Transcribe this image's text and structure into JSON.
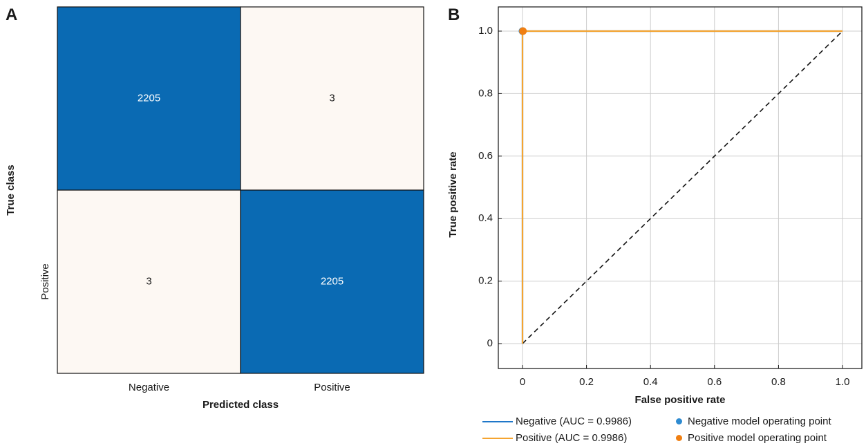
{
  "panels": {
    "a_label": "A",
    "b_label": "B"
  },
  "colors": {
    "cell_high": "#0a6ab3",
    "cell_low": "#fdf8f3",
    "grid": "#cccccc",
    "negative": "#1f77c9",
    "positive": "#f5a430",
    "positive_point": "#f07f12",
    "negative_point": "#2e8bd1",
    "diagonal": "#111111"
  },
  "chart_data": [
    {
      "type": "heatmap",
      "title": "",
      "xlabel": "Predicted class",
      "ylabel": "True class",
      "x_categories": [
        "Negative",
        "Positive"
      ],
      "y_categories": [
        "",
        "Positive"
      ],
      "values": [
        [
          2205,
          3
        ],
        [
          3,
          2205
        ]
      ],
      "cell_labels": [
        [
          "2205",
          "3"
        ],
        [
          "3",
          "2205"
        ]
      ]
    },
    {
      "type": "line",
      "title": "",
      "xlabel": "False positive rate",
      "ylabel": "True positive rate",
      "xlim": [
        -0.08,
        1.06
      ],
      "ylim": [
        -0.08,
        1.06
      ],
      "grid": true,
      "x_ticks": [
        0,
        0.2,
        0.4,
        0.6,
        0.8,
        1.0
      ],
      "x_tick_labels": [
        "0",
        "0.2",
        "0.4",
        "0.6",
        "0.8",
        "1.0"
      ],
      "y_ticks": [
        0,
        0.2,
        0.4,
        0.6,
        0.8,
        1.0
      ],
      "y_tick_labels": [
        "0",
        "0.2",
        "0.4",
        "0.6",
        "0.8",
        "1.0"
      ],
      "series": [
        {
          "name": "Negative (AUC = 0.9986)",
          "x": [
            0,
            0,
            1
          ],
          "y": [
            0,
            1,
            1
          ]
        },
        {
          "name": "Positive (AUC = 0.9986)",
          "x": [
            0,
            0,
            1
          ],
          "y": [
            0,
            1,
            1
          ]
        }
      ],
      "diagonal": {
        "x": [
          0,
          1
        ],
        "y": [
          0,
          1
        ],
        "style": "dashed"
      },
      "points": [
        {
          "name": "Negative model operating point",
          "x": 0,
          "y": 1
        },
        {
          "name": "Positive model operating point",
          "x": 0.0014,
          "y": 1
        }
      ],
      "legend_position": "bottom"
    }
  ]
}
